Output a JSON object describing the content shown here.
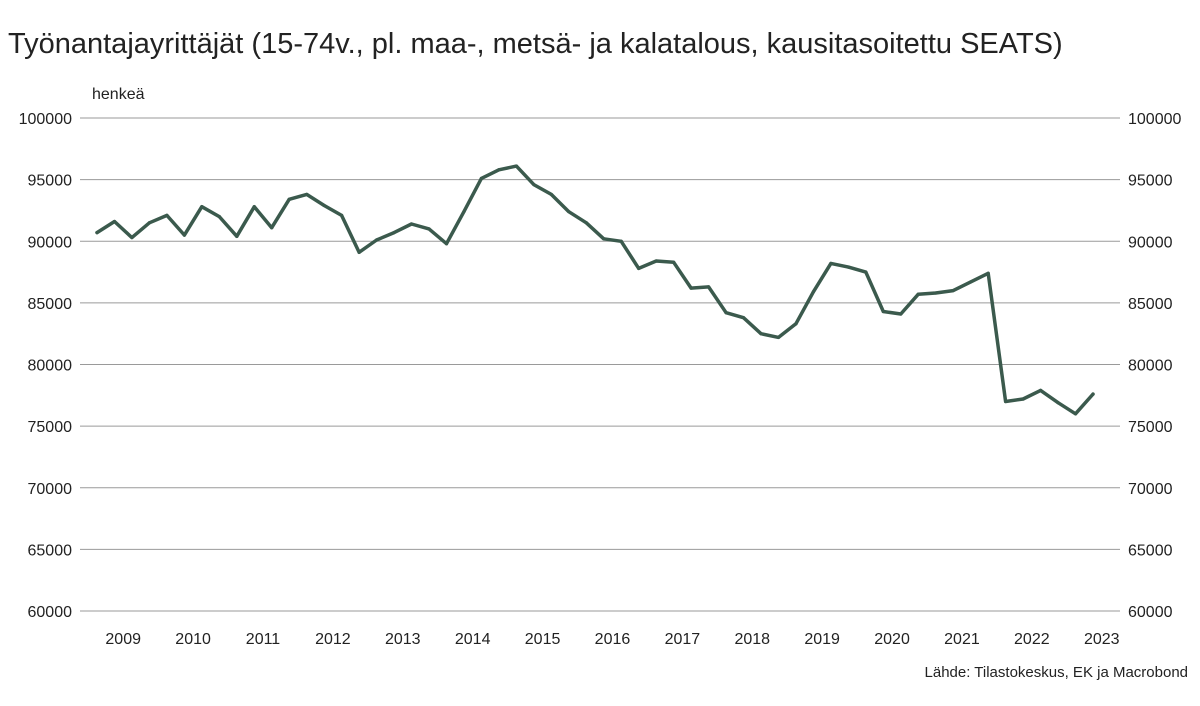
{
  "chart_data": {
    "type": "line",
    "title": "Työnantajayrittäjät (15-74v., pl. maa-, metsä- ja kalatalous, kausitasoitettu SEATS)",
    "unit_label": "henkeä",
    "source": "Lähde: Tilastokeskus, EK ja Macrobond",
    "y_axis": {
      "min": 60000,
      "max": 100000,
      "ticks": [
        "100000",
        "95000",
        "90000",
        "85000",
        "80000",
        "75000",
        "70000",
        "65000",
        "60000"
      ],
      "tick_values": [
        100000,
        95000,
        90000,
        85000,
        80000,
        75000,
        70000,
        65000,
        60000
      ],
      "both_sides": true,
      "grid": true
    },
    "x_axis": {
      "year_labels": [
        "2009",
        "2010",
        "2011",
        "2012",
        "2013",
        "2014",
        "2015",
        "2016",
        "2017",
        "2018",
        "2019",
        "2020",
        "2021",
        "2022",
        "2023"
      ],
      "first_year": 2009,
      "points_per_year": 4
    },
    "series": [
      {
        "color": "#3b5a4d",
        "values": [
          90700,
          91600,
          90300,
          91500,
          92100,
          90500,
          92800,
          92000,
          90400,
          92800,
          91100,
          93400,
          93800,
          92900,
          92100,
          89100,
          90100,
          90700,
          91400,
          91000,
          89800,
          92400,
          95100,
          95800,
          96100,
          94600,
          93800,
          92400,
          91500,
          90200,
          90000,
          87800,
          88400,
          88300,
          86200,
          86300,
          84200,
          83800,
          82500,
          82200,
          83300,
          85900,
          88200,
          87900,
          87500,
          84300,
          84100,
          85700,
          85800,
          86000,
          86700,
          87400,
          77000,
          77200,
          77900,
          76900,
          76000,
          77600
        ]
      }
    ]
  }
}
